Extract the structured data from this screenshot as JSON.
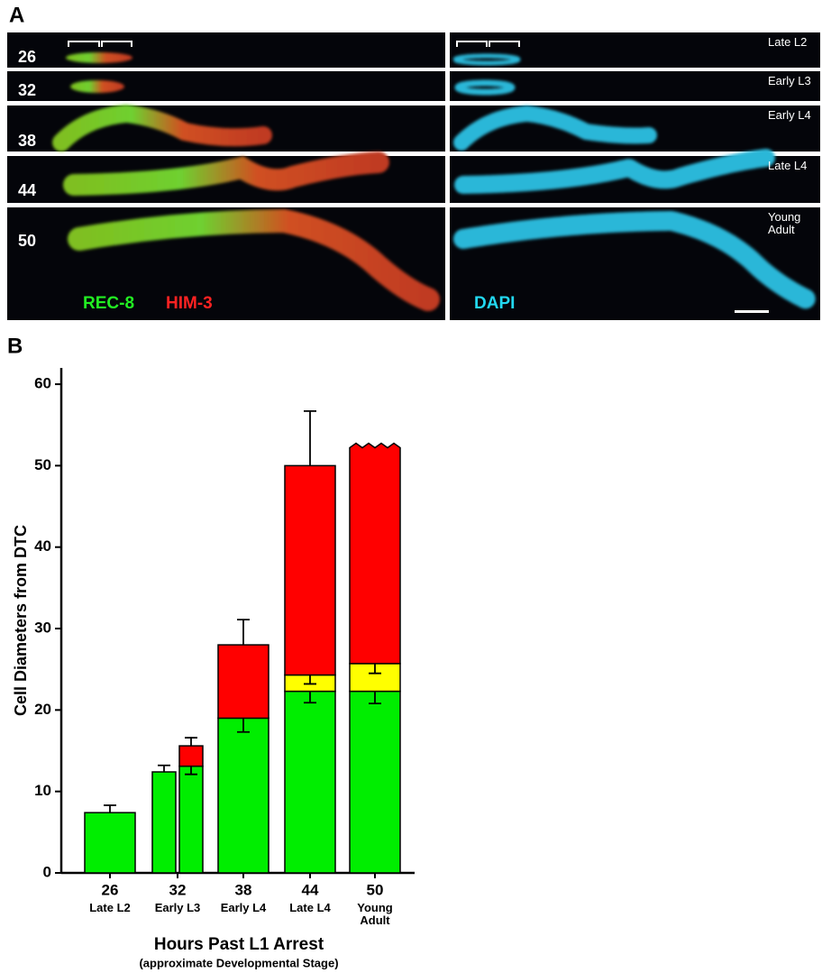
{
  "panel_a": {
    "label": "A",
    "rows": [
      {
        "hours": "26",
        "stage": "Late L2"
      },
      {
        "hours": "32",
        "stage": "Early L3"
      },
      {
        "hours": "38",
        "stage": "Early L4"
      },
      {
        "hours": "44",
        "stage": "Late L4"
      },
      {
        "hours": "50",
        "stage": "Young Adult"
      }
    ],
    "stains": {
      "rec8": "REC-8",
      "him3": "HIM-3",
      "dapi": "DAPI"
    }
  },
  "chart_data": {
    "type": "bar",
    "label": "B",
    "ylabel": "Cell Diameters from DTC",
    "xlabel": "Hours Past L1 Arrest",
    "xsublabel": "(approximate Developmental Stage)",
    "categories": [
      "26",
      "32",
      "38",
      "44",
      "50"
    ],
    "stages": [
      "Late L2",
      "Early L3",
      "Early L4",
      "Late L4",
      "Young Adult"
    ],
    "ylim": [
      0,
      62
    ],
    "yticks": [
      0,
      10,
      20,
      30,
      40,
      50,
      60
    ],
    "groups": [
      [
        {
          "segments": [
            {
              "value": 7.4,
              "error": 0.9,
              "color": "#00ee00"
            }
          ]
        }
      ],
      [
        {
          "segments": [
            {
              "value": 12.4,
              "error": 0.8,
              "color": "#00ee00"
            }
          ]
        },
        {
          "segments": [
            {
              "value": 13.1,
              "error": 1.0,
              "color": "#00ee00"
            },
            {
              "value": 2.5,
              "error": 1.0,
              "color": "#ff0000"
            }
          ]
        }
      ],
      [
        {
          "segments": [
            {
              "value": 19,
              "error": 1.7,
              "color": "#00ee00"
            },
            {
              "value": 9,
              "error": 3.1,
              "color": "#ff0000"
            }
          ]
        }
      ],
      [
        {
          "segments": [
            {
              "value": 22.3,
              "error": 1.4,
              "color": "#00ee00"
            },
            {
              "value": 2,
              "error": 1.1,
              "color": "#ffff00"
            },
            {
              "value": 25.7,
              "error": 6.7,
              "color": "#ff0000"
            }
          ]
        }
      ],
      [
        {
          "broken": true,
          "segments": [
            {
              "value": 22.3,
              "error": 1.5,
              "color": "#00ee00"
            },
            {
              "value": 3.4,
              "error": 1.2,
              "color": "#ffff00"
            },
            {
              "value": 26.5,
              "color": "#ff0000"
            }
          ]
        }
      ]
    ]
  }
}
